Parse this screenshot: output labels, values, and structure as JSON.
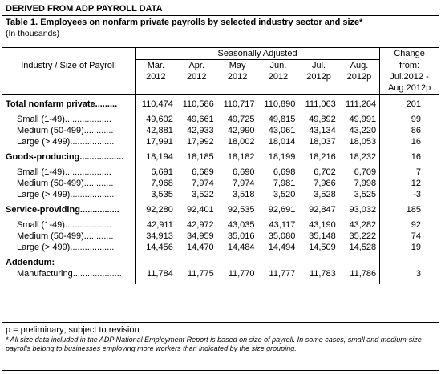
{
  "header": {
    "derived": "DERIVED FROM ADP PAYROLL DATA",
    "table_label": "Table 1.",
    "title": "Employees on nonfarm private payrolls by selected industry sector and size*",
    "units": "(In thousands)"
  },
  "columns": {
    "group_label": "Seasonally Adjusted",
    "stub_label": "Industry / Size of Payroll",
    "months": [
      {
        "line1": "Mar.",
        "line2": "2012"
      },
      {
        "line1": "Apr.",
        "line2": "2012"
      },
      {
        "line1": "May",
        "line2": "2012"
      },
      {
        "line1": "Jun.",
        "line2": "2012"
      },
      {
        "line1": "Jul.",
        "line2": "2012p"
      },
      {
        "line1": "Aug.",
        "line2": "2012p"
      }
    ],
    "change": {
      "line1": "Change",
      "line2": "from:",
      "line3": "Jul.2012 -",
      "line4": "Aug.2012p"
    }
  },
  "rows": [
    {
      "label": "Total nonfarm private.........",
      "values": [
        "110,474",
        "110,586",
        "110,717",
        "110,890",
        "111,063",
        "111,264"
      ],
      "change": "201"
    },
    {
      "label": "Small (1-49)...................",
      "values": [
        "49,602",
        "49,661",
        "49,725",
        "49,815",
        "49,892",
        "49,991"
      ],
      "change": "99"
    },
    {
      "label": "Medium (50-499)............",
      "values": [
        "42,881",
        "42,933",
        "42,990",
        "43,061",
        "43,134",
        "43,220"
      ],
      "change": "86"
    },
    {
      "label": "Large (> 499)..................",
      "values": [
        "17,991",
        "17,992",
        "18,002",
        "18,014",
        "18,037",
        "18,053"
      ],
      "change": "16"
    },
    {
      "label": "Goods-producing..................",
      "values": [
        "18,194",
        "18,185",
        "18,182",
        "18,199",
        "18,216",
        "18,232"
      ],
      "change": "16"
    },
    {
      "label": "Small (1-49)...................",
      "values": [
        "6,691",
        "6,689",
        "6,690",
        "6,698",
        "6,702",
        "6,709"
      ],
      "change": "7"
    },
    {
      "label": "Medium (50-499)............",
      "values": [
        "7,968",
        "7,974",
        "7,974",
        "7,981",
        "7,986",
        "7,998"
      ],
      "change": "12"
    },
    {
      "label": "Large (> 499)..................",
      "values": [
        "3,535",
        "3,522",
        "3,518",
        "3,520",
        "3,528",
        "3,525"
      ],
      "change": "-3"
    },
    {
      "label": "Service-providing................",
      "values": [
        "92,280",
        "92,401",
        "92,535",
        "92,691",
        "92,847",
        "93,032"
      ],
      "change": "185"
    },
    {
      "label": "Small (1-49)...................",
      "values": [
        "42,911",
        "42,972",
        "43,035",
        "43,117",
        "43,190",
        "43,282"
      ],
      "change": "92"
    },
    {
      "label": "Medium (50-499)............",
      "values": [
        "34,913",
        "34,959",
        "35,016",
        "35,080",
        "35,148",
        "35,222"
      ],
      "change": "74"
    },
    {
      "label": "Large (> 499)..................",
      "values": [
        "14,456",
        "14,470",
        "14,484",
        "14,494",
        "14,509",
        "14,528"
      ],
      "change": "19"
    }
  ],
  "addendum": {
    "label": "Addendum:",
    "row": {
      "label": "Manufacturing.....................",
      "values": [
        "11,784",
        "11,775",
        "11,770",
        "11,777",
        "11,783",
        "11,786"
      ],
      "change": "3"
    }
  },
  "footnotes": {
    "p": "p = preliminary; subject to revision",
    "star": "* All size data included in the ADP National Employment Report is based on size of payroll.  In some cases, small and medium-size payrolls belong to businesses employing more workers than indicated by the size grouping."
  }
}
